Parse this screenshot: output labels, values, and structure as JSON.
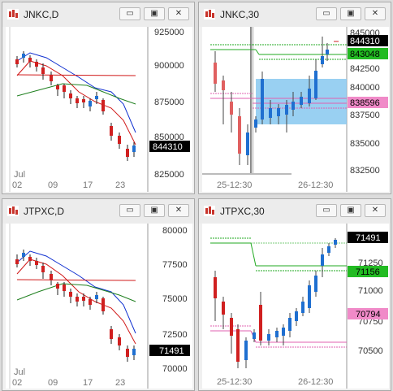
{
  "windows": [
    {
      "title": "JNKC,D",
      "tick_labels": [
        "925000",
        "900000",
        "875000",
        "850000",
        "825000"
      ],
      "price_tag": "844310",
      "x_labels": [
        "Jul",
        "02",
        "09",
        "17",
        "23"
      ],
      "colors": {
        "up": "#1f6fd0",
        "down": "#d02020",
        "blue_line": "#1030d0",
        "red_line": "#d01818",
        "green_line": "#208020"
      }
    },
    {
      "title": "JNKC,30",
      "tick_labels": [
        "845000",
        "842500",
        "840000",
        "837500",
        "835000",
        "832500"
      ],
      "price_tag": "844310",
      "green_tag": "843048",
      "pink_tag": "838596",
      "x_labels": [
        "25-12:30",
        "26-12:30"
      ],
      "colors": {
        "tag_green": "#22bb22",
        "tag_pink": "#f08ac8",
        "box": "#87c8f0"
      }
    },
    {
      "title": "JTPXC,D",
      "tick_labels": [
        "80000",
        "77500",
        "75000",
        "72500",
        "70000"
      ],
      "price_tag": "71491",
      "x_labels": [
        "Jul",
        "02",
        "09",
        "17",
        "23"
      ]
    },
    {
      "title": "JTPXC,30",
      "tick_labels": [
        "71250",
        "71000",
        "70750",
        "70500"
      ],
      "price_tag": "71491",
      "green_tag": "71156",
      "pink_tag": "70794",
      "x_labels": [
        "25-12:30",
        "26-12:30"
      ]
    }
  ],
  "controls": {
    "minimize": "▭",
    "maximize": "▣",
    "close": "✕"
  }
}
